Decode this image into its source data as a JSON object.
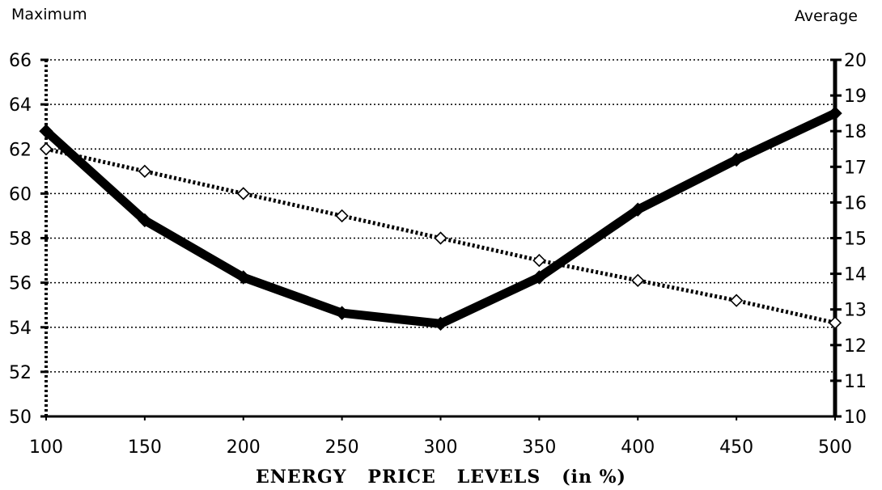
{
  "chart_data": {
    "type": "line",
    "title": "",
    "xlabel": "ENERGY   PRICE   LEVELS   (in %)",
    "left_axis_label": "Maximum",
    "right_axis_label": "Average",
    "x": [
      100,
      150,
      200,
      250,
      300,
      350,
      400,
      450,
      500
    ],
    "x_tick_labels": [
      "100",
      "150",
      "200",
      "250",
      "300",
      "350",
      "400",
      "450",
      "500"
    ],
    "xlim": [
      100,
      500
    ],
    "ylim_left": [
      50,
      66
    ],
    "ylim_right": [
      10,
      20
    ],
    "y_left_ticks": [
      "50",
      "52",
      "54",
      "56",
      "58",
      "60",
      "62",
      "64",
      "66"
    ],
    "y_right_ticks": [
      "10",
      "11",
      "12",
      "13",
      "14",
      "15",
      "16",
      "17",
      "18",
      "19",
      "20"
    ],
    "grid": "horizontal dotted",
    "legend": "none",
    "series": [
      {
        "axis": "left",
        "style": "dotted line, open diamond markers",
        "color": "#000000",
        "values": [
          62.0,
          61.0,
          60.0,
          59.0,
          58.0,
          57.0,
          56.1,
          55.2,
          54.2
        ]
      },
      {
        "axis": "right",
        "style": "thick solid line, filled diamond markers",
        "color": "#000000",
        "values": [
          18.0,
          15.5,
          13.9,
          12.9,
          12.6,
          13.9,
          15.8,
          17.2,
          18.5
        ]
      }
    ]
  }
}
